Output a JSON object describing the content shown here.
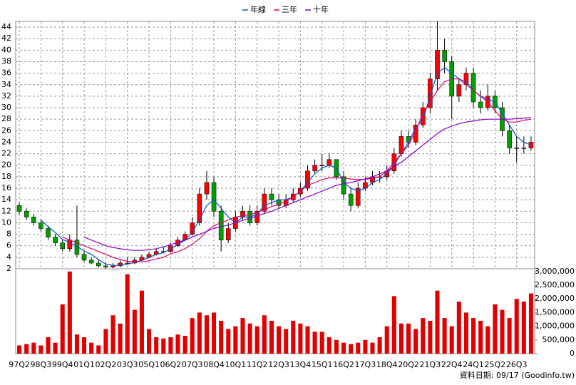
{
  "chart_data": {
    "type": "candlestick",
    "legend_position": "top",
    "note": "資料日期: 09/17 (Goodinfo.tw)",
    "categories": [
      "97Q2",
      null,
      null,
      "98Q3",
      null,
      null,
      "99Q4",
      null,
      null,
      "01Q1",
      null,
      null,
      "02Q2",
      null,
      null,
      "03Q3",
      null,
      null,
      "05Q1",
      null,
      null,
      "06Q2",
      null,
      null,
      "07Q3",
      null,
      null,
      "08Q4",
      null,
      null,
      "10Q1",
      null,
      null,
      "11Q2",
      null,
      null,
      "12Q3",
      null,
      null,
      "13Q4",
      null,
      null,
      "15Q1",
      null,
      null,
      "16Q2",
      null,
      null,
      "17Q3",
      null,
      null,
      "18Q4",
      null,
      null,
      "20Q2",
      null,
      null,
      "21Q3",
      null,
      null,
      "22Q4",
      null,
      null,
      "24Q1",
      null,
      null,
      "25Q2",
      null,
      null,
      "26Q3",
      null,
      null
    ],
    "open": [
      13,
      12,
      11,
      10,
      9,
      7.5,
      6.5,
      5.5,
      7,
      4.5,
      3.5,
      3,
      2.5,
      2.3,
      2.5,
      3,
      3,
      3.5,
      4,
      4.5,
      5,
      5,
      6,
      7,
      8,
      10,
      15,
      17,
      12,
      7,
      9,
      11,
      12,
      10,
      12,
      15,
      14,
      13,
      14,
      15,
      16,
      19,
      20,
      20,
      21,
      18,
      15,
      13,
      16,
      17,
      18,
      18,
      19,
      22,
      25,
      24,
      27,
      30,
      35,
      40,
      38,
      32,
      34,
      36,
      31,
      30,
      32,
      30,
      26,
      23,
      23,
      23
    ],
    "high": [
      13.5,
      12.5,
      11.5,
      10.5,
      9.5,
      8,
      7,
      8,
      13,
      5,
      4,
      3.5,
      3,
      3,
      3.5,
      4,
      4,
      4.5,
      5,
      5.5,
      5.8,
      6.5,
      7.5,
      8.5,
      11,
      16,
      19,
      18,
      13,
      10,
      12,
      13,
      13,
      13,
      16,
      16,
      15,
      15,
      16,
      17,
      20,
      21,
      22,
      22,
      21,
      19,
      16,
      17,
      18,
      19,
      19,
      20,
      23,
      26,
      26,
      28,
      31,
      36,
      45,
      42,
      39,
      35,
      37,
      37,
      33,
      34,
      33,
      31,
      27,
      25,
      25,
      25
    ],
    "low": [
      11.5,
      10.5,
      9.5,
      8.5,
      7,
      6,
      5,
      5,
      4,
      3.2,
      2.8,
      2.2,
      2,
      2.1,
      2.3,
      2.8,
      2.8,
      3.3,
      3.8,
      4.3,
      4.7,
      4.8,
      5.8,
      6.8,
      7.8,
      9.5,
      14,
      11,
      5,
      6.5,
      8.5,
      10.5,
      9.5,
      9.5,
      11.5,
      13,
      12.5,
      12.5,
      13.5,
      14.5,
      15.5,
      18.5,
      19,
      19.5,
      17.5,
      14,
      12,
      12.5,
      15.5,
      16.5,
      17,
      17.5,
      18.5,
      21.5,
      23,
      23.5,
      26.5,
      29,
      33,
      36,
      28,
      31,
      33,
      30,
      29,
      29.5,
      29,
      25,
      22,
      20.5,
      22,
      22.5
    ],
    "close": [
      12,
      11,
      10,
      9,
      7.5,
      6.5,
      5.5,
      7,
      4.5,
      3.5,
      3,
      2.5,
      2.3,
      2.5,
      3,
      3,
      3.5,
      4,
      4.5,
      5,
      5,
      6,
      7,
      8,
      10,
      15,
      17,
      12,
      7,
      9,
      11,
      12,
      10,
      12,
      15,
      14,
      13,
      14,
      15,
      16,
      19,
      20,
      20,
      21,
      18,
      15,
      13,
      16,
      17,
      18,
      18,
      19,
      22,
      25,
      24,
      27,
      30,
      35,
      40,
      38,
      32,
      34,
      36,
      31,
      30,
      32,
      30,
      26,
      23,
      23,
      23,
      24
    ],
    "volume": [
      300000,
      350000,
      400000,
      300000,
      600000,
      400000,
      1800000,
      3000000,
      700000,
      600000,
      400000,
      300000,
      900000,
      1400000,
      1100000,
      2900000,
      1600000,
      2300000,
      900000,
      600000,
      550000,
      600000,
      700000,
      650000,
      1300000,
      1500000,
      1400000,
      1500000,
      1200000,
      900000,
      1000000,
      1300000,
      1100000,
      1000000,
      1400000,
      1200000,
      1000000,
      900000,
      1200000,
      1100000,
      1000000,
      800000,
      800000,
      600000,
      500000,
      400000,
      350000,
      400000,
      500000,
      400000,
      600000,
      1000000,
      2100000,
      1100000,
      1100000,
      900000,
      1300000,
      1200000,
      2300000,
      1300000,
      1000000,
      1900000,
      1500000,
      1300000,
      1200000,
      1000000,
      1800000,
      1600000,
      1300000,
      2000000,
      1900000,
      2200000
    ],
    "up_color": "#ff0000",
    "down_color": "#00a000",
    "volume_color": "#e00000",
    "series": [
      {
        "name": "年線",
        "color": "#0055cc",
        "values": [
          null,
          null,
          null,
          10.5,
          9.3,
          8.3,
          7.1,
          6.6,
          5.9,
          5.1,
          4.5,
          3.6,
          2.8,
          2.6,
          2.6,
          2.8,
          3.1,
          3.5,
          4,
          4.5,
          4.8,
          5.5,
          6.2,
          7,
          8.3,
          10.5,
          13,
          14,
          12.5,
          11,
          10,
          11,
          11,
          11.5,
          13,
          13.5,
          14,
          14,
          14.5,
          15.5,
          17,
          18.5,
          19.5,
          20,
          19.5,
          17,
          16,
          15.5,
          16,
          17,
          17.5,
          18.5,
          20,
          22,
          24,
          26.5,
          28,
          32,
          36,
          37,
          36,
          35,
          34.5,
          33,
          32,
          31.5,
          31,
          29,
          27,
          25,
          24,
          23.5
        ]
      },
      {
        "name": "三年",
        "color": "#e0006f",
        "values": [
          null,
          null,
          null,
          null,
          null,
          null,
          7.5,
          7,
          6.5,
          6,
          5.5,
          5,
          4.5,
          4,
          3.6,
          3.3,
          3.2,
          3.2,
          3.4,
          3.7,
          4,
          4.6,
          5,
          5.5,
          6.3,
          7.2,
          8.5,
          9.5,
          10,
          10.5,
          11,
          11.2,
          11.4,
          11.8,
          12.3,
          12.8,
          13.2,
          13.8,
          14.5,
          15.5,
          16.5,
          17,
          17.5,
          17.8,
          17.8,
          17.8,
          17.6,
          17.5,
          17.5,
          17.8,
          18,
          19,
          20.5,
          22,
          23.5,
          26,
          29,
          31,
          33,
          34.5,
          35,
          35,
          34,
          33,
          32,
          31,
          29.5,
          28,
          27.5,
          27.5,
          27.8,
          28
        ]
      },
      {
        "name": "十年",
        "color": "#8800cc",
        "values": [
          null,
          null,
          null,
          null,
          null,
          null,
          null,
          null,
          null,
          7.5,
          7,
          6.5,
          6,
          5.7,
          5.5,
          5.3,
          5.2,
          5.2,
          5.3,
          5.5,
          5.8,
          6.2,
          6.6,
          7,
          7.5,
          8,
          8.5,
          9,
          9.3,
          9.6,
          10,
          10.4,
          10.8,
          11.2,
          11.6,
          12,
          12.5,
          13,
          13.5,
          14,
          14.5,
          15,
          15.5,
          16,
          16.5,
          16.8,
          17,
          17.3,
          17.6,
          18,
          18.5,
          19,
          19.8,
          20.5,
          21.5,
          22.5,
          23.5,
          24.5,
          25.5,
          26.3,
          26.8,
          27.2,
          27.5,
          27.7,
          27.9,
          28,
          28,
          28,
          28,
          28.1,
          28.2,
          28.3
        ]
      }
    ],
    "ylim": [
      2,
      45
    ],
    "yticks": [
      2,
      4,
      6,
      8,
      10,
      12,
      14,
      16,
      18,
      20,
      22,
      24,
      26,
      28,
      30,
      32,
      34,
      36,
      38,
      40,
      42,
      44
    ],
    "y2lim": [
      0,
      3100000
    ],
    "y2ticks": [
      0,
      {
        "value": 500000,
        "label": "500,000"
      },
      {
        "value": 1000000,
        "label": "1,000,000"
      },
      {
        "value": 1500000,
        "label": "1,500,000"
      },
      {
        "value": 2000000,
        "label": "2,000,000"
      },
      {
        "value": 2500000,
        "label": "2,500,000"
      },
      {
        "value": 3000000,
        "label": "3,000,000"
      }
    ],
    "grid": true
  }
}
